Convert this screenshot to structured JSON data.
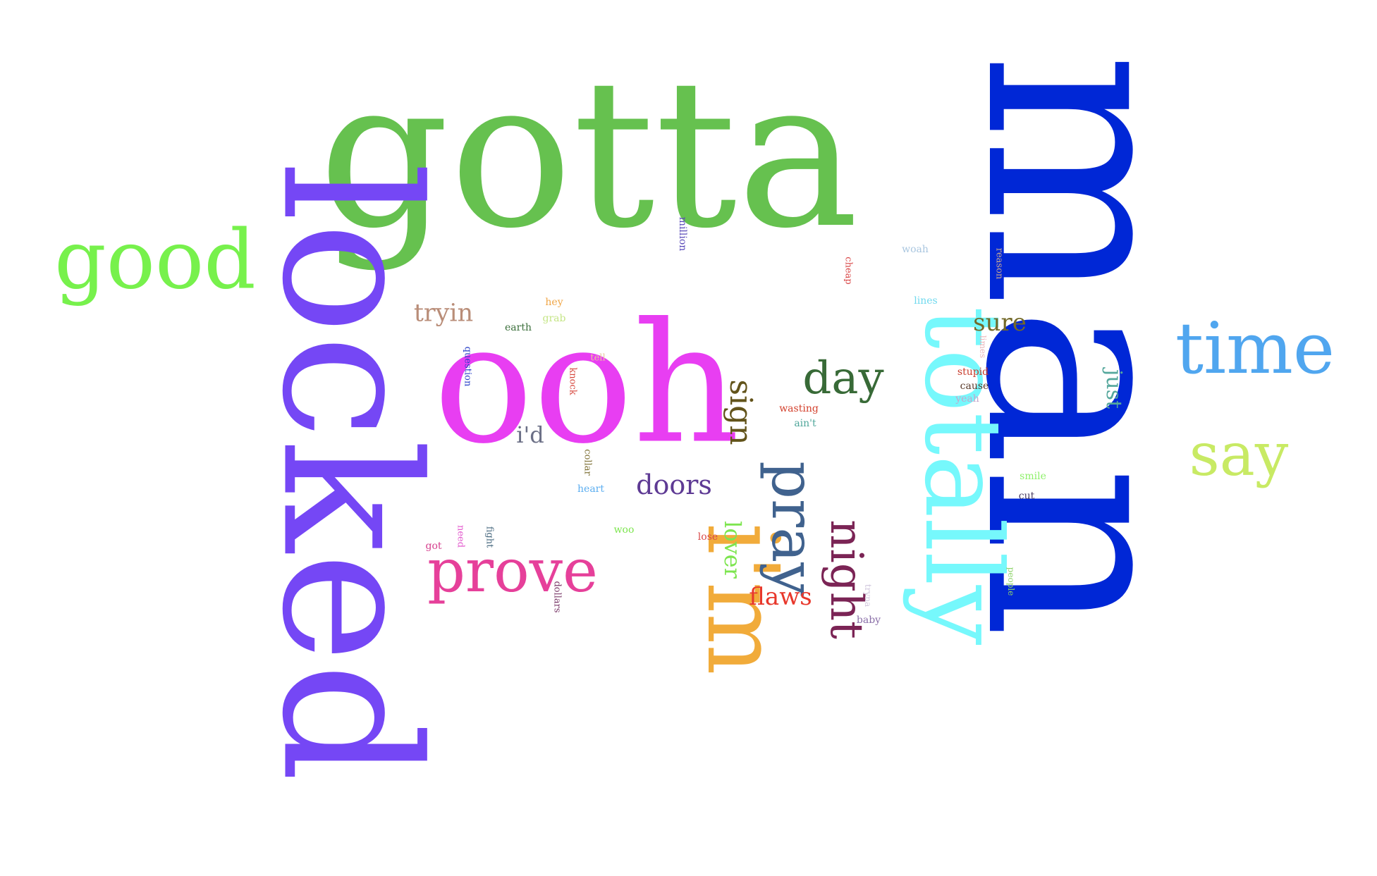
{
  "words": [
    {
      "text": "man",
      "color": "#0027d6",
      "vertical": true
    },
    {
      "text": "gotta",
      "color": "#66c14f",
      "vertical": false
    },
    {
      "text": "locked",
      "color": "#7547f5",
      "vertical": true
    },
    {
      "text": "ooh",
      "color": "#e83ef2",
      "vertical": false
    },
    {
      "text": "totally",
      "color": "#76f8fc",
      "vertical": true
    },
    {
      "text": "i'm",
      "color": "#f1ab3a",
      "vertical": true
    },
    {
      "text": "good",
      "color": "#77f14c",
      "vertical": false
    },
    {
      "text": "time",
      "color": "#50a6ef",
      "vertical": false
    },
    {
      "text": "pray",
      "color": "#40628e",
      "vertical": true
    },
    {
      "text": "prove",
      "color": "#e6409a",
      "vertical": false
    },
    {
      "text": "say",
      "color": "#c8ea64",
      "vertical": false
    },
    {
      "text": "night",
      "color": "#7b2455",
      "vertical": true
    },
    {
      "text": "day",
      "color": "#386a37",
      "vertical": false
    },
    {
      "text": "sign",
      "color": "#62531a",
      "vertical": true
    },
    {
      "text": "doors",
      "color": "#5e3a94",
      "vertical": false
    },
    {
      "text": "tryin",
      "color": "#b98d78",
      "vertical": false
    },
    {
      "text": "sure",
      "color": "#736929",
      "vertical": false
    },
    {
      "text": "flaws",
      "color": "#e8372b",
      "vertical": false
    },
    {
      "text": "lover",
      "color": "#7de54f",
      "vertical": true
    },
    {
      "text": "i'd",
      "color": "#6b6f86",
      "vertical": false
    },
    {
      "text": "just",
      "color": "#55a79c",
      "vertical": true
    },
    {
      "text": "million",
      "color": "#5a4bb9",
      "vertical": true
    },
    {
      "text": "woah",
      "color": "#a9c6df",
      "vertical": false
    },
    {
      "text": "reason",
      "color": "#c9a890",
      "vertical": true
    },
    {
      "text": "cheap",
      "color": "#d94a4a",
      "vertical": true
    },
    {
      "text": "lines",
      "color": "#6fd9ee",
      "vertical": false
    },
    {
      "text": "hey",
      "color": "#f0a646",
      "vertical": false
    },
    {
      "text": "grab",
      "color": "#c5e586",
      "vertical": false
    },
    {
      "text": "earth",
      "color": "#3b6f3b",
      "vertical": false
    },
    {
      "text": "question",
      "color": "#2940c8",
      "vertical": true
    },
    {
      "text": "tell",
      "color": "#e8c89c",
      "vertical": false
    },
    {
      "text": "knock",
      "color": "#d6463c",
      "vertical": true
    },
    {
      "text": "stupid",
      "color": "#c83c2c",
      "vertical": false
    },
    {
      "text": "limes",
      "color": "#e8b6ba",
      "vertical": true
    },
    {
      "text": "cause",
      "color": "#5a3c2c",
      "vertical": false
    },
    {
      "text": "yeah",
      "color": "#c4a6cc",
      "vertical": false
    },
    {
      "text": "wasting",
      "color": "#d3412d",
      "vertical": false
    },
    {
      "text": "ain't",
      "color": "#4fa69a",
      "vertical": false
    },
    {
      "text": "collar",
      "color": "#7e7035",
      "vertical": true
    },
    {
      "text": "heart",
      "color": "#5caef0",
      "vertical": false
    },
    {
      "text": "smile",
      "color": "#8ef06a",
      "vertical": false
    },
    {
      "text": "cut",
      "color": "#4c3f63",
      "vertical": false
    },
    {
      "text": "woo",
      "color": "#7de54f",
      "vertical": false
    },
    {
      "text": "lose",
      "color": "#d94a4a",
      "vertical": false
    },
    {
      "text": "need",
      "color": "#e35bce",
      "vertical": true
    },
    {
      "text": "fight",
      "color": "#48697f",
      "vertical": true
    },
    {
      "text": "got",
      "color": "#d6408e",
      "vertical": false
    },
    {
      "text": "dollars",
      "color": "#7b3b6a",
      "vertical": true
    },
    {
      "text": "people",
      "color": "#8fd46c",
      "vertical": true
    },
    {
      "text": "tryna",
      "color": "#d0c6dc",
      "vertical": true
    },
    {
      "text": "baby",
      "color": "#8a6fa8",
      "vertical": false
    }
  ]
}
